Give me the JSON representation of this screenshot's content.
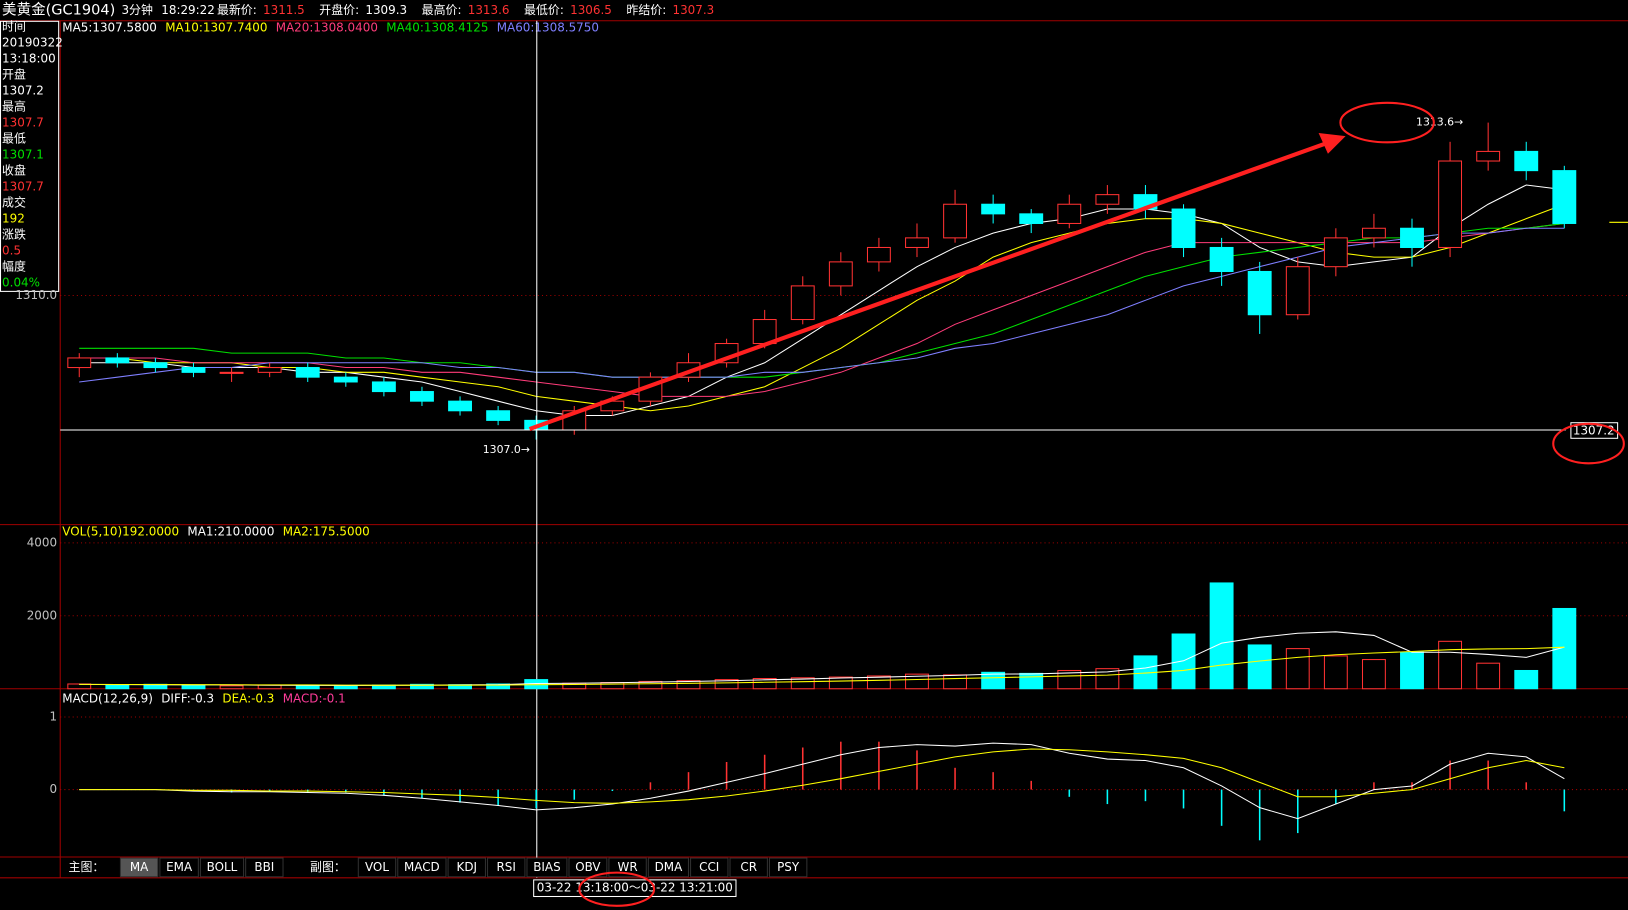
{
  "header": {
    "title": "美黄金(GC1904)",
    "period": "3分钟",
    "time": "18:29:22",
    "quotes": [
      {
        "label": "最新价:",
        "value": "1311.5",
        "color": "#ff3232"
      },
      {
        "label": "开盘价:",
        "value": "1309.3",
        "color": "#ffffff"
      },
      {
        "label": "最高价:",
        "value": "1313.6",
        "color": "#ff3232"
      },
      {
        "label": "最低价:",
        "value": "1306.5",
        "color": "#ff3232"
      },
      {
        "label": "昨结价:",
        "value": "1307.3",
        "color": "#ff3232"
      }
    ]
  },
  "info_panel": [
    {
      "text": "时间",
      "color": "#ffffff"
    },
    {
      "text": "20190322",
      "color": "#ffffff"
    },
    {
      "text": "13:18:00",
      "color": "#ffffff"
    },
    {
      "text": "开盘",
      "color": "#ffffff"
    },
    {
      "text": "1307.2",
      "color": "#ffffff"
    },
    {
      "text": "最高",
      "color": "#ffffff"
    },
    {
      "text": "1307.7",
      "color": "#ff3232"
    },
    {
      "text": "最低",
      "color": "#ffffff"
    },
    {
      "text": "1307.1",
      "color": "#00e000"
    },
    {
      "text": "收盘",
      "color": "#ffffff"
    },
    {
      "text": "1307.7",
      "color": "#ff3232"
    },
    {
      "text": "成交",
      "color": "#ffffff"
    },
    {
      "text": "192",
      "color": "#ffff00"
    },
    {
      "text": "涨跌",
      "color": "#ffffff"
    },
    {
      "text": "0.5",
      "color": "#ff3232"
    },
    {
      "text": "幅度",
      "color": "#ffffff"
    },
    {
      "text": "0.04%",
      "color": "#00e000"
    }
  ],
  "chart_data": [
    {
      "type": "candlestick",
      "up_color": "#ff3232",
      "down_color": "#00ffff",
      "open": [
        1308.5,
        1308.7,
        1308.6,
        1308.5,
        1308.4,
        1308.4,
        1308.5,
        1308.3,
        1308.2,
        1308.0,
        1307.8,
        1307.6,
        1307.4,
        1307.2,
        1307.6,
        1307.8,
        1308.3,
        1308.6,
        1309.0,
        1309.5,
        1310.2,
        1310.7,
        1311.0,
        1311.2,
        1311.9,
        1311.7,
        1311.5,
        1311.9,
        1312.1,
        1311.8,
        1311.0,
        1310.5,
        1309.6,
        1310.6,
        1311.2,
        1311.4,
        1311.0,
        1312.8,
        1313.0,
        1312.6
      ],
      "high": [
        1308.8,
        1308.8,
        1308.7,
        1308.6,
        1308.5,
        1308.6,
        1308.6,
        1308.4,
        1308.3,
        1308.1,
        1307.9,
        1307.7,
        1307.5,
        1307.7,
        1307.9,
        1308.4,
        1308.8,
        1309.1,
        1309.7,
        1310.4,
        1310.9,
        1311.2,
        1311.5,
        1312.2,
        1312.1,
        1311.8,
        1312.1,
        1312.3,
        1312.3,
        1311.9,
        1311.2,
        1310.7,
        1310.8,
        1311.4,
        1311.7,
        1311.6,
        1313.2,
        1313.6,
        1313.2,
        1312.7
      ],
      "low": [
        1308.3,
        1308.5,
        1308.4,
        1308.3,
        1308.2,
        1308.3,
        1308.2,
        1308.1,
        1307.9,
        1307.7,
        1307.5,
        1307.3,
        1307.0,
        1307.1,
        1307.5,
        1307.7,
        1308.2,
        1308.5,
        1308.9,
        1309.4,
        1310.0,
        1310.5,
        1310.8,
        1311.1,
        1311.5,
        1311.3,
        1311.4,
        1311.7,
        1311.6,
        1310.8,
        1310.2,
        1309.2,
        1309.5,
        1310.4,
        1311.0,
        1310.6,
        1310.8,
        1312.6,
        1312.4,
        1311.4
      ],
      "close": [
        1308.7,
        1308.6,
        1308.5,
        1308.4,
        1308.4,
        1308.5,
        1308.3,
        1308.2,
        1308.0,
        1307.8,
        1307.6,
        1307.4,
        1307.2,
        1307.6,
        1307.8,
        1308.3,
        1308.6,
        1309.0,
        1309.5,
        1310.2,
        1310.7,
        1311.0,
        1311.2,
        1311.9,
        1311.7,
        1311.5,
        1311.9,
        1312.1,
        1311.8,
        1311.0,
        1310.5,
        1309.6,
        1310.6,
        1311.2,
        1311.4,
        1311.0,
        1312.8,
        1313.0,
        1312.6,
        1311.5
      ],
      "series": [
        {
          "name": "MA5:1307.5800",
          "color": "#ffffff",
          "values": [
            1308.6,
            1308.6,
            1308.6,
            1308.5,
            1308.5,
            1308.5,
            1308.4,
            1308.4,
            1308.3,
            1308.2,
            1308.0,
            1307.8,
            1307.6,
            1307.5,
            1307.5,
            1307.7,
            1307.9,
            1308.3,
            1308.6,
            1309.1,
            1309.6,
            1310.1,
            1310.6,
            1311.0,
            1311.3,
            1311.5,
            1311.6,
            1311.8,
            1311.8,
            1311.7,
            1311.5,
            1311.0,
            1310.7,
            1310.6,
            1310.7,
            1310.8,
            1311.4,
            1311.9,
            1312.3,
            1312.2
          ]
        },
        {
          "name": "MA10:1307.7400",
          "color": "#ffff00",
          "values": [
            1308.7,
            1308.7,
            1308.6,
            1308.6,
            1308.6,
            1308.5,
            1308.5,
            1308.4,
            1308.4,
            1308.3,
            1308.2,
            1308.1,
            1307.9,
            1307.8,
            1307.7,
            1307.6,
            1307.7,
            1307.9,
            1308.1,
            1308.5,
            1308.9,
            1309.4,
            1309.9,
            1310.3,
            1310.8,
            1311.1,
            1311.3,
            1311.5,
            1311.6,
            1311.6,
            1311.5,
            1311.3,
            1311.1,
            1310.9,
            1310.8,
            1310.8,
            1311.0,
            1311.3,
            1311.6,
            1311.9
          ]
        },
        {
          "name": "MA20:1308.0400",
          "color": "#ff3c7a",
          "values": [
            1308.7,
            1308.7,
            1308.7,
            1308.6,
            1308.6,
            1308.6,
            1308.6,
            1308.5,
            1308.5,
            1308.4,
            1308.4,
            1308.3,
            1308.2,
            1308.1,
            1308.0,
            1307.9,
            1307.9,
            1307.9,
            1308.0,
            1308.2,
            1308.4,
            1308.7,
            1309.0,
            1309.4,
            1309.7,
            1310.0,
            1310.3,
            1310.6,
            1310.9,
            1311.1,
            1311.1,
            1311.1,
            1311.1,
            1311.1,
            1311.1,
            1311.1,
            1311.2,
            1311.3,
            1311.4,
            1311.5
          ]
        },
        {
          "name": "MA40:1308.4125",
          "color": "#00e000",
          "values": [
            1308.9,
            1308.9,
            1308.9,
            1308.9,
            1308.8,
            1308.8,
            1308.8,
            1308.7,
            1308.7,
            1308.6,
            1308.6,
            1308.5,
            1308.4,
            1308.4,
            1308.3,
            1308.3,
            1308.3,
            1308.3,
            1308.3,
            1308.4,
            1308.5,
            1308.6,
            1308.8,
            1309.0,
            1309.2,
            1309.5,
            1309.8,
            1310.1,
            1310.4,
            1310.6,
            1310.8,
            1310.9,
            1311.0,
            1311.1,
            1311.2,
            1311.2,
            1311.3,
            1311.4,
            1311.4,
            1311.5
          ]
        },
        {
          "name": "MA60:1308.5750",
          "color": "#7f7fff",
          "values": [
            1308.2,
            1308.3,
            1308.4,
            1308.5,
            1308.5,
            1308.6,
            1308.6,
            1308.6,
            1308.6,
            1308.6,
            1308.5,
            1308.5,
            1308.4,
            1308.4,
            1308.3,
            1308.3,
            1308.3,
            1308.3,
            1308.4,
            1308.4,
            1308.5,
            1308.6,
            1308.7,
            1308.9,
            1309.0,
            1309.2,
            1309.4,
            1309.6,
            1309.9,
            1310.2,
            1310.4,
            1310.6,
            1310.8,
            1311.0,
            1311.1,
            1311.2,
            1311.3,
            1311.3,
            1311.4,
            1311.4
          ]
        }
      ],
      "ylim": [
        1305.23,
        1315.72
      ],
      "yticks": [
        {
          "value": 1310,
          "label": "1310.0"
        }
      ],
      "grid": true,
      "high_label": "1313.6→",
      "low_label": "1307.0→",
      "crosshair_price": {
        "value": 1307.2,
        "label": "1307.2"
      }
    },
    {
      "type": "bar",
      "name": "VOL(5,10)192.0000",
      "name_color": "#ffff00",
      "values": [
        130,
        100,
        120,
        90,
        80,
        100,
        80,
        90,
        100,
        120,
        110,
        130,
        250,
        150,
        170,
        200,
        220,
        250,
        280,
        300,
        320,
        350,
        400,
        380,
        450,
        420,
        500,
        550,
        900,
        1500,
        2900,
        1200,
        1100,
        900,
        800,
        1000,
        1300,
        700,
        500,
        2200
      ],
      "series": [
        {
          "name": "MA1:210.0000",
          "color": "#ffffff",
          "values": [
            120,
            115,
            112,
            105,
            104,
            98,
            95,
            88,
            92,
            98,
            104,
            110,
            142,
            152,
            166,
            180,
            198,
            218,
            244,
            266,
            294,
            316,
            342,
            366,
            402,
            404,
            434,
            460,
            570,
            766,
            1250,
            1410,
            1520,
            1560,
            1460,
            1000,
            1000,
            940,
            860,
            1140
          ]
        },
        {
          "name": "MA2:175.5000",
          "color": "#ffff00",
          "values": [
            120,
            118,
            116,
            112,
            108,
            106,
            104,
            100,
            98,
            97,
            98,
            100,
            110,
            118,
            126,
            136,
            148,
            160,
            176,
            194,
            212,
            232,
            254,
            278,
            302,
            326,
            350,
            374,
            430,
            500,
            650,
            760,
            860,
            930,
            980,
            1020,
            1070,
            1090,
            1100,
            1140
          ]
        }
      ],
      "ylim": [
        0,
        4500
      ],
      "yticks": [
        2000,
        4000
      ],
      "grid": true
    },
    {
      "type": "macd",
      "title": "MACD(12,26,9)",
      "title_color": "#ffffff",
      "series": [
        {
          "name": "DIFF:-0.3",
          "color": "#ffffff",
          "values": [
            0,
            0,
            0,
            -0.02,
            -0.03,
            -0.03,
            -0.04,
            -0.05,
            -0.08,
            -0.12,
            -0.17,
            -0.22,
            -0.28,
            -0.25,
            -0.2,
            -0.12,
            -0.02,
            0.1,
            0.22,
            0.35,
            0.48,
            0.58,
            0.62,
            0.6,
            0.64,
            0.62,
            0.5,
            0.42,
            0.4,
            0.3,
            0.05,
            -0.25,
            -0.4,
            -0.2,
            0,
            0.05,
            0.35,
            0.5,
            0.45,
            0.15
          ]
        },
        {
          "name": "DEA:-0.3",
          "color": "#ffff00",
          "values": [
            0,
            0,
            0,
            -0.01,
            -0.01,
            -0.02,
            -0.02,
            -0.03,
            -0.04,
            -0.06,
            -0.08,
            -0.11,
            -0.15,
            -0.18,
            -0.19,
            -0.17,
            -0.14,
            -0.09,
            -0.02,
            0.06,
            0.15,
            0.25,
            0.35,
            0.45,
            0.52,
            0.56,
            0.55,
            0.52,
            0.48,
            0.43,
            0.3,
            0.1,
            -0.1,
            -0.1,
            -0.05,
            0,
            0.15,
            0.3,
            0.4,
            0.3
          ]
        }
      ],
      "histogram": {
        "name": "MACD:-0.1",
        "color": "#ff3c9a",
        "up_color": "#ff3232",
        "down_color": "#00ffff",
        "values": [
          0,
          0,
          0,
          -0.02,
          -0.04,
          -0.02,
          -0.04,
          -0.04,
          -0.08,
          -0.12,
          -0.18,
          -0.22,
          -0.26,
          -0.14,
          -0.02,
          0.1,
          0.24,
          0.38,
          0.48,
          0.58,
          0.66,
          0.66,
          0.54,
          0.3,
          0.24,
          0.12,
          -0.1,
          -0.2,
          -0.16,
          -0.26,
          -0.5,
          -0.7,
          -0.6,
          -0.2,
          0.1,
          0.1,
          0.4,
          0.4,
          0.1,
          -0.3
        ]
      },
      "ylim": [
        -0.93,
        1.39
      ],
      "yticks": [
        0,
        1
      ],
      "grid": true
    }
  ],
  "tabs": {
    "main_label": "主图：",
    "main": [
      "MA",
      "EMA",
      "BOLL",
      "BBI"
    ],
    "active": "MA",
    "sub_label": "副图：",
    "sub": [
      "VOL",
      "MACD",
      "KDJ",
      "RSI",
      "BIAS",
      "OBV",
      "WR",
      "DMA",
      "CCI",
      "CR",
      "PSY"
    ]
  },
  "footer_range": "03-22 13:18:00～03-22 13:21:00"
}
